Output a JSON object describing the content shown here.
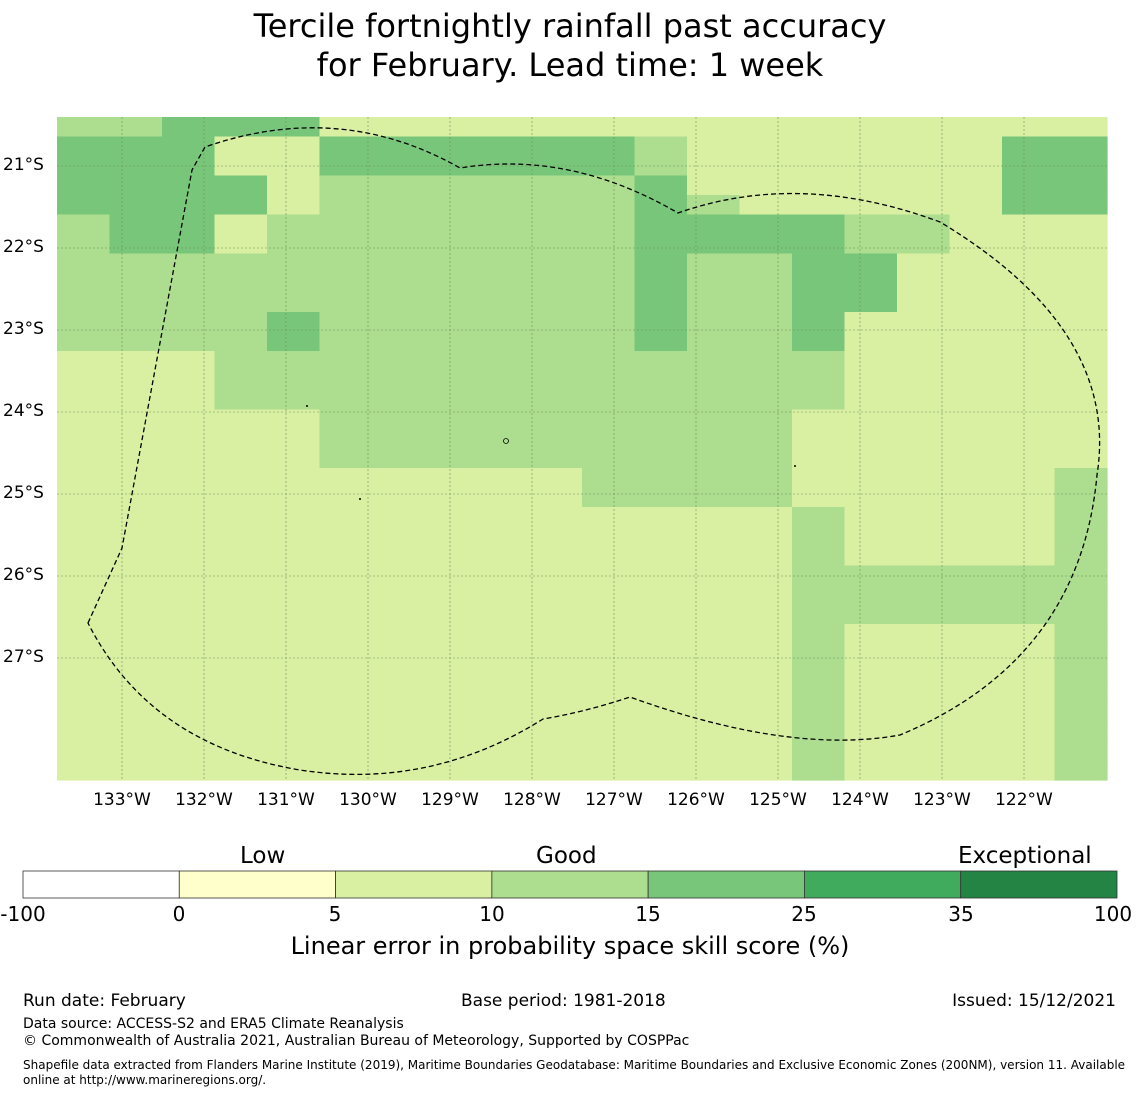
{
  "title": {
    "line1": "Tercile fortnightly rainfall past accuracy",
    "line2": "for February. Lead time: 1 week"
  },
  "map": {
    "lat_labels": [
      "21°S",
      "22°S",
      "23°S",
      "24°S",
      "25°S",
      "26°S",
      "27°S"
    ],
    "lon_labels": [
      "133°W",
      "132°W",
      "131°W",
      "130°W",
      "129°W",
      "128°W",
      "127°W",
      "126°W",
      "125°W",
      "124°W",
      "123°W",
      "122°W"
    ],
    "legend_colors": {
      "0": "#ffffff",
      "1": "#ffffcc",
      "2": "#d9f0a3",
      "3": "#addd8e",
      "4": "#78c679",
      "5": "#41ab5d",
      "6": "#238443"
    },
    "grid": [
      "33444222222222222222",
      "44422444444322222244",
      "44422444444322222244",
      "44442333333422222244",
      "44442333333432222244",
      "34423333333444433222",
      "34423333333444433222",
      "33333333333433442222",
      "33333333333433442222",
      "33333333333433442222",
      "33334333333433422222",
      "33334333333433422222",
      "22233333333333322222",
      "22233333333333322222",
      "22233333333333322222",
      "22222333333333222222",
      "22222333333333222222",
      "22222333333333222222",
      "22222222223333222223",
      "22222222223333222223",
      "22222222222222322223",
      "22222222222222322223",
      "22222222222222322223",
      "22222222222222333333",
      "22222222222222333333",
      "22222222222222333333",
      "22222222222222322223",
      "22222222222222322223",
      "22222222222222322223",
      "22222222222222322223",
      "22222222222222322223",
      "22222222222222322223",
      "22222222222222322223",
      "22222222222222322223"
    ]
  },
  "chart_data": {
    "type": "heatmap",
    "title": "Tercile fortnightly rainfall past accuracy for February. Lead time: 1 week",
    "colorbar": {
      "label": "Linear error in probability space skill score (%)",
      "ticks": [
        "-100",
        "0",
        "5",
        "10",
        "15",
        "25",
        "35",
        "100"
      ],
      "bins": [
        {
          "from": -100,
          "to": 0,
          "color": "#ffffff"
        },
        {
          "from": 0,
          "to": 5,
          "color": "#ffffcc"
        },
        {
          "from": 5,
          "to": 10,
          "color": "#d9f0a3"
        },
        {
          "from": 10,
          "to": 15,
          "color": "#addd8e"
        },
        {
          "from": 15,
          "to": 25,
          "color": "#78c679"
        },
        {
          "from": 25,
          "to": 35,
          "color": "#41ab5d"
        },
        {
          "from": 35,
          "to": 100,
          "color": "#238443"
        }
      ],
      "category_labels": {
        "low": "Low",
        "good": "Good",
        "exceptional": "Exceptional"
      }
    },
    "x_range_deg_w": [
      133.8,
      121.0
    ],
    "y_range_deg_s": [
      20.6,
      28.7
    ]
  },
  "footer": {
    "run_date": "Run date: February",
    "base_period": "Base period: 1981-2018",
    "issued": "Issued: 15/12/2021",
    "data_source": "Data source: ACCESS-S2 and ERA5 Climate Reanalysis",
    "copyright": "© Commonwealth of Australia 2021, Australian Bureau of Meteorology, Supported by COSPPac",
    "shapefile_line1": "Shapefile data extracted from Flanders Marine Institute (2019), Maritime Boundaries Geodatabase: Maritime Boundaries and Exclusive Economic Zones (200NM), version 11. Available",
    "shapefile_line2": "online at http://www.marineregions.org/."
  }
}
